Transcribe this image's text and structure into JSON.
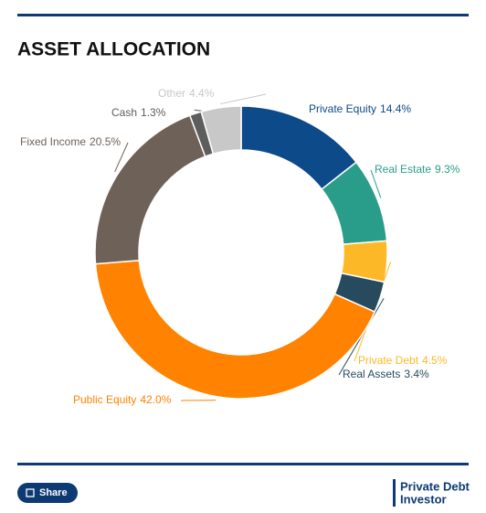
{
  "chart_data": {
    "type": "donut",
    "title": "ASSET ALLOCATION",
    "categories": [
      "Private Equity",
      "Real Estate",
      "Private Debt",
      "Real Assets",
      "Public Equity",
      "Fixed Income",
      "Cash",
      "Other"
    ],
    "values": [
      14.4,
      9.3,
      4.5,
      3.4,
      42.0,
      20.5,
      1.3,
      4.4
    ],
    "value_labels": [
      "14.4%",
      "9.3%",
      "4.5%",
      "3.4%",
      "42.0%",
      "20.5%",
      "1.3%",
      "4.4%"
    ],
    "colors": [
      "#0d4a8a",
      "#2a9d8a",
      "#fdb827",
      "#274a5e",
      "#ff8200",
      "#6e6158",
      "#5d5d5d",
      "#c8c8c8"
    ]
  },
  "footer": {
    "share": "Share",
    "logo": [
      "Private Debt",
      "Investor"
    ]
  }
}
